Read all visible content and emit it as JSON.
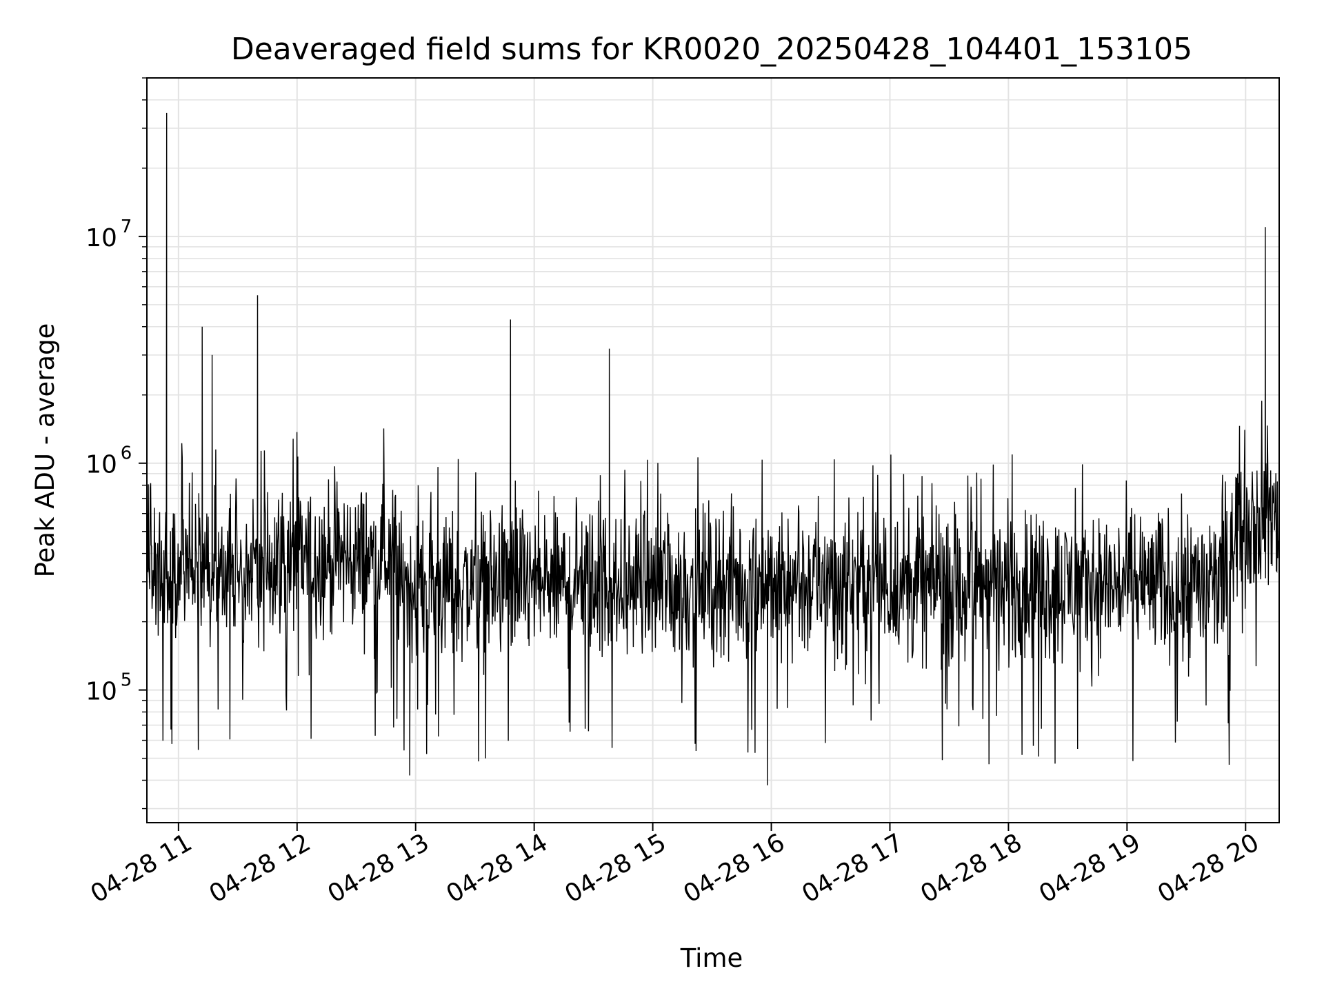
{
  "chart_data": {
    "type": "line",
    "title": "Deaveraged field sums for KR0020_20250428_104401_153105",
    "xlabel": "Time",
    "ylabel": "Peak ADU - average",
    "x_ticks": [
      "04-28 11",
      "04-28 12",
      "04-28 13",
      "04-28 14",
      "04-28 15",
      "04-28 16",
      "04-28 17",
      "04-28 18",
      "04-28 19",
      "04-28 20"
    ],
    "y_ticks": [
      {
        "value": 100000,
        "base": "10",
        "exp": "5"
      },
      {
        "value": 1000000,
        "base": "10",
        "exp": "6"
      },
      {
        "value": 10000000,
        "base": "10",
        "exp": "7"
      }
    ],
    "x_range": [
      "2025-04-28 10:44",
      "2025-04-28 20:17"
    ],
    "y_range": [
      26000,
      50000000
    ],
    "yscale": "log",
    "grid": true,
    "grid_color": "#e3e3e3",
    "line_color": "#000000",
    "series": [
      {
        "x": [
          "2025-04-28 10:44",
          "2025-04-28 10:50",
          "2025-04-28 10:54",
          "2025-04-28 10:55",
          "2025-04-28 11:12",
          "2025-04-28 11:17",
          "2025-04-28 11:35",
          "2025-04-28 11:40",
          "2025-04-28 12:10",
          "2025-04-28 12:30",
          "2025-04-28 12:36",
          "2025-04-28 12:50",
          "2025-04-28 12:57",
          "2025-04-28 13:00",
          "2025-04-28 13:20",
          "2025-04-28 13:48",
          "2025-04-28 14:00",
          "2025-04-28 14:25",
          "2025-04-28 14:38",
          "2025-04-28 14:38",
          "2025-04-28 15:00",
          "2025-04-28 15:25",
          "2025-04-28 15:30",
          "2025-04-28 15:55",
          "2025-04-28 15:58",
          "2025-04-28 16:20",
          "2025-04-28 16:45",
          "2025-04-28 17:00",
          "2025-04-28 17:22",
          "2025-04-28 17:50",
          "2025-04-28 18:20",
          "2025-04-28 18:35",
          "2025-04-28 18:50",
          "2025-04-28 19:02",
          "2025-04-28 19:30",
          "2025-04-28 19:48",
          "2025-04-28 19:55",
          "2025-04-28 20:03",
          "2025-04-28 20:10",
          "2025-04-28 20:15",
          "2025-04-28 20:17"
        ],
        "y": [
          300000,
          220000,
          35000000,
          260000,
          4000000,
          3000000,
          250000,
          5500000,
          400000,
          300000,
          1500000,
          240000,
          42000,
          280000,
          320000,
          4300000,
          300000,
          280000,
          3200000,
          280000,
          250000,
          900000,
          300000,
          280000,
          38000,
          300000,
          280000,
          320000,
          900000,
          300000,
          280000,
          55000,
          300000,
          280000,
          270000,
          260000,
          600000,
          550000,
          11000000,
          600000,
          700000
        ]
      }
    ]
  }
}
